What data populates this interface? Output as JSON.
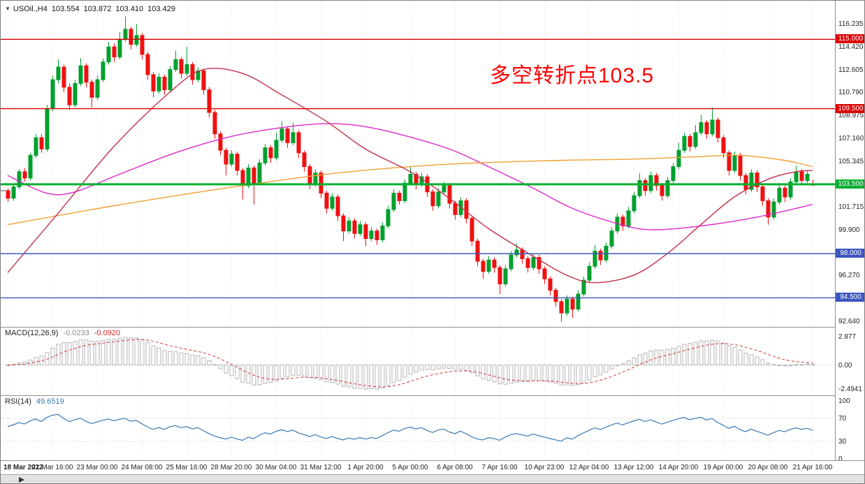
{
  "header": {
    "dropdown_icon": "▼",
    "symbol": "USOil.,H4",
    "open": "103.554",
    "high": "103.872",
    "low": "103.410",
    "close": "103.429"
  },
  "annotation": {
    "text": "多空转折点103.5",
    "color": "#FF0000"
  },
  "colors": {
    "up": "#00A02E",
    "down": "#EE1111",
    "ma_magenta": "#DD28C8",
    "ma_orange": "#F0A030",
    "ma_crimson": "#C2314B",
    "macd_hist": "#B4B4B4",
    "macd_signal": "#D23333",
    "rsi_line": "#3878B4",
    "grid": "#E7E7E7",
    "level_dotted": "#C8C8C8",
    "hline_red": "#DD0000",
    "hline_green": "#00B02E",
    "hline_blue": "#3C56C0"
  },
  "chart_data": {
    "type": "candlestick",
    "symbol": "USOil.",
    "timeframe": "H4",
    "grid": true,
    "ylim": [
      92.2,
      118.06
    ],
    "y_ticks": [
      "116.235",
      "114.420",
      "112.605",
      "110.790",
      "108.975",
      "107.160",
      "105.345",
      "101.715",
      "99.900",
      "96.270",
      "92.640"
    ],
    "x_labels": [
      "18 Mar 2022",
      "21 Mar 16:00",
      "23 Mar 00:00",
      "24 Mar 08:00",
      "25 Mar 16:00",
      "28 Mar 20:00",
      "30 Mar 04:00",
      "31 Mar 12:00",
      "1 Apr 20:00",
      "5 Apr 00:00",
      "6 Apr 08:00",
      "7 Apr 16:00",
      "10 Apr 23:00",
      "12 Apr 04:00",
      "13 Apr 12:00",
      "14 Apr 20:00",
      "19 Apr 00:00",
      "20 Apr 08:00",
      "21 Apr 16:00"
    ],
    "bars_per_label": 8,
    "open_dash_price": 103.0,
    "hlines": [
      {
        "price": 115.0,
        "label": "115.000",
        "color": "#DD0000",
        "width": 1.4
      },
      {
        "price": 109.5,
        "label": "109.500",
        "color": "#DD0000",
        "width": 1.4
      },
      {
        "price": 103.5,
        "label": "103.500",
        "color": "#00B02E",
        "width": 3
      },
      {
        "price": 98.0,
        "label": "98.000",
        "color": "#3C56C0",
        "width": 1.4
      },
      {
        "price": 94.5,
        "label": "94.500",
        "color": "#3C56C0",
        "width": 1.4
      }
    ],
    "moving_averages": [
      {
        "name": "ma-magenta",
        "color": "#DD28C8",
        "points": [
          [
            0,
            104.2
          ],
          [
            7,
            102.8
          ],
          [
            12,
            102.9
          ],
          [
            20,
            104.3
          ],
          [
            30,
            106.0
          ],
          [
            40,
            107.3
          ],
          [
            49,
            108.0
          ],
          [
            56,
            108.3
          ],
          [
            62,
            108.2
          ],
          [
            69,
            107.6
          ],
          [
            79,
            106.3
          ],
          [
            86,
            104.9
          ],
          [
            94,
            103.2
          ],
          [
            101,
            101.6
          ],
          [
            109,
            100.4
          ],
          [
            115,
            99.9
          ],
          [
            124,
            100.2
          ],
          [
            134,
            100.9
          ],
          [
            144,
            101.9
          ]
        ]
      },
      {
        "name": "ma-orange",
        "color": "#F0A030",
        "points": [
          [
            0,
            100.3
          ],
          [
            19,
            101.8
          ],
          [
            39,
            103.2
          ],
          [
            59,
            104.4
          ],
          [
            79,
            105.1
          ],
          [
            99,
            105.4
          ],
          [
            112,
            105.5
          ],
          [
            124,
            105.7
          ],
          [
            131,
            105.8
          ],
          [
            139,
            105.4
          ],
          [
            144,
            104.9
          ]
        ]
      },
      {
        "name": "ma-crimson",
        "color": "#C2314B",
        "points": [
          [
            0,
            96.5
          ],
          [
            9,
            101.2
          ],
          [
            19,
            106.5
          ],
          [
            29,
            110.8
          ],
          [
            35,
            112.6
          ],
          [
            42,
            112.3
          ],
          [
            49,
            110.6
          ],
          [
            57,
            108.5
          ],
          [
            64,
            106.3
          ],
          [
            72,
            104.5
          ],
          [
            79,
            102.4
          ],
          [
            86,
            100.0
          ],
          [
            94,
            97.8
          ],
          [
            100,
            96.3
          ],
          [
            105,
            95.7
          ],
          [
            112,
            96.3
          ],
          [
            118,
            98.0
          ],
          [
            124,
            100.3
          ],
          [
            130,
            102.5
          ],
          [
            136,
            103.9
          ],
          [
            141,
            104.5
          ],
          [
            144,
            104.6
          ]
        ]
      }
    ],
    "candles": [
      [
        103,
        103.2,
        102.1,
        102.4
      ],
      [
        102.4,
        103.5,
        102.2,
        103.3
      ],
      [
        103.3,
        104.7,
        103.1,
        104.5
      ],
      [
        104.5,
        104.8,
        103.7,
        104
      ],
      [
        104,
        106,
        103.8,
        105.8
      ],
      [
        105.8,
        107.5,
        105.6,
        107.2
      ],
      [
        107.2,
        107.5,
        106,
        106.3
      ],
      [
        106.3,
        109.8,
        106.1,
        109.5
      ],
      [
        109.5,
        112.1,
        109.3,
        111.8
      ],
      [
        111.8,
        113.4,
        111.5,
        112.8
      ],
      [
        112.8,
        113,
        110.8,
        111.2
      ],
      [
        111.2,
        111.5,
        109.4,
        109.8
      ],
      [
        109.8,
        111.8,
        109.6,
        111.5
      ],
      [
        111.5,
        113.5,
        111.3,
        112.9
      ],
      [
        112.9,
        113.1,
        111.2,
        111.6
      ],
      [
        111.6,
        111.8,
        109.6,
        110.4
      ],
      [
        110.4,
        112.1,
        110.2,
        111.8
      ],
      [
        111.8,
        113.5,
        111.6,
        113.2
      ],
      [
        113.2,
        114.8,
        113,
        114.4
      ],
      [
        114.4,
        114.7,
        113.2,
        113.6
      ],
      [
        113.6,
        115.6,
        113.4,
        115
      ],
      [
        115,
        116.8,
        114.8,
        115.8
      ],
      [
        115.8,
        116,
        114.2,
        114.6
      ],
      [
        114.6,
        116.2,
        114.4,
        115.3
      ],
      [
        115.3,
        115.5,
        113.4,
        113.8
      ],
      [
        113.8,
        114,
        111.8,
        112.2
      ],
      [
        112.2,
        112.4,
        110.4,
        110.9
      ],
      [
        110.9,
        112.3,
        110.7,
        112
      ],
      [
        112,
        112.2,
        110.6,
        111
      ],
      [
        111,
        112.9,
        110.8,
        112.6
      ],
      [
        112.6,
        114.1,
        112.4,
        113.4
      ],
      [
        113.4,
        113.6,
        111.9,
        112.3
      ],
      [
        112.3,
        114.4,
        112.1,
        113
      ],
      [
        113,
        113.2,
        111.4,
        111.8
      ],
      [
        111.8,
        112.8,
        111.6,
        112.5
      ],
      [
        112.5,
        112.7,
        110.6,
        111
      ],
      [
        111,
        111.2,
        108.8,
        109.2
      ],
      [
        109.2,
        109.4,
        107.1,
        107.5
      ],
      [
        107.5,
        107.7,
        105.8,
        106.2
      ],
      [
        106.2,
        106.4,
        104.2,
        105.1
      ],
      [
        105.1,
        106.2,
        104.9,
        105.9
      ],
      [
        105.9,
        106.1,
        104.2,
        104.6
      ],
      [
        104.6,
        104.8,
        102.3,
        103.4
      ],
      [
        103.4,
        105.1,
        103.2,
        104.8
      ],
      [
        104.8,
        105,
        101.9,
        103.6
      ],
      [
        103.6,
        105.5,
        103.4,
        105.2
      ],
      [
        105.2,
        106.7,
        105,
        106.4
      ],
      [
        106.4,
        106.6,
        105.2,
        105.6
      ],
      [
        105.6,
        107.6,
        105.4,
        107
      ],
      [
        107,
        108.5,
        106.8,
        107.9
      ],
      [
        107.9,
        108.1,
        106.4,
        106.8
      ],
      [
        106.8,
        108.4,
        106.6,
        107.6
      ],
      [
        107.6,
        107.8,
        105.6,
        106
      ],
      [
        106,
        106.2,
        104.5,
        104.9
      ],
      [
        104.9,
        105.1,
        103.1,
        103.5
      ],
      [
        103.5,
        104.7,
        103.3,
        104.4
      ],
      [
        104.4,
        104.6,
        102.4,
        102.8
      ],
      [
        102.8,
        103,
        101.2,
        101.6
      ],
      [
        101.6,
        102.8,
        101.4,
        102.5
      ],
      [
        102.5,
        102.7,
        100.6,
        101
      ],
      [
        101,
        101.2,
        99,
        99.8
      ],
      [
        99.8,
        100.9,
        99.6,
        100.6
      ],
      [
        100.6,
        100.8,
        99.2,
        99.6
      ],
      [
        99.6,
        100.6,
        99.4,
        100.3
      ],
      [
        100.3,
        100.5,
        98.6,
        99.2
      ],
      [
        99.2,
        100.1,
        99,
        99.8
      ],
      [
        99.8,
        100,
        98.7,
        99.1
      ],
      [
        99.1,
        100.5,
        98.9,
        100.2
      ],
      [
        100.2,
        101.8,
        100,
        101.5
      ],
      [
        101.5,
        103.1,
        101.3,
        102.8
      ],
      [
        102.8,
        103,
        101.9,
        102.2
      ],
      [
        102.2,
        103.9,
        102,
        103.6
      ],
      [
        103.6,
        104.9,
        103.4,
        104.3
      ],
      [
        104.3,
        104.5,
        103.1,
        103.5
      ],
      [
        103.5,
        104.4,
        103.3,
        104.1
      ],
      [
        104.1,
        104.3,
        102.5,
        102.9
      ],
      [
        102.9,
        103.1,
        101.4,
        101.8
      ],
      [
        101.8,
        103.2,
        101.6,
        102.9
      ],
      [
        102.9,
        103.7,
        102.7,
        103.4
      ],
      [
        103.4,
        103.6,
        101.6,
        102
      ],
      [
        102,
        102.2,
        100.7,
        101.1
      ],
      [
        101.1,
        102.5,
        100.9,
        102.2
      ],
      [
        102.2,
        102.4,
        100.4,
        100.8
      ],
      [
        100.8,
        101,
        98.6,
        99
      ],
      [
        99,
        99.2,
        97,
        97.4
      ],
      [
        97.4,
        97.6,
        96,
        96.6
      ],
      [
        96.6,
        97.8,
        96.4,
        97.5
      ],
      [
        97.5,
        97.7,
        96.5,
        96.9
      ],
      [
        96.9,
        97.1,
        94.8,
        95.6
      ],
      [
        95.6,
        97.1,
        95.4,
        96.8
      ],
      [
        96.8,
        98.2,
        96.6,
        97.9
      ],
      [
        97.9,
        98.8,
        97.7,
        98.3
      ],
      [
        98.3,
        98.5,
        97.2,
        97.6
      ],
      [
        97.6,
        97.8,
        96.5,
        96.9
      ],
      [
        96.9,
        98,
        96.7,
        97.7
      ],
      [
        97.7,
        97.9,
        96.4,
        96.8
      ],
      [
        96.8,
        97,
        95.6,
        96
      ],
      [
        96,
        96.2,
        94.7,
        95.1
      ],
      [
        95.1,
        95.3,
        93.8,
        94.2
      ],
      [
        94.2,
        94.4,
        92.6,
        93.3
      ],
      [
        93.3,
        94.7,
        93.1,
        94.4
      ],
      [
        94.4,
        94.6,
        92.9,
        93.6
      ],
      [
        93.6,
        95.1,
        93.4,
        94.8
      ],
      [
        94.8,
        96.2,
        94.6,
        95.9
      ],
      [
        95.9,
        97.3,
        95.7,
        97
      ],
      [
        97,
        98.7,
        96.8,
        98.2
      ],
      [
        98.2,
        98.4,
        97.1,
        97.5
      ],
      [
        97.5,
        98.9,
        97.3,
        98.6
      ],
      [
        98.6,
        100.1,
        98.4,
        99.8
      ],
      [
        99.8,
        101.2,
        99.6,
        100.9
      ],
      [
        100.9,
        101.1,
        99.8,
        100.2
      ],
      [
        100.2,
        101.7,
        100,
        101.4
      ],
      [
        101.4,
        102.9,
        101.2,
        102.6
      ],
      [
        102.6,
        104.4,
        102.4,
        103.8
      ],
      [
        103.8,
        104,
        102.6,
        103
      ],
      [
        103,
        104.5,
        102.8,
        104.2
      ],
      [
        104.2,
        104.4,
        103,
        103.4
      ],
      [
        103.4,
        103.6,
        102.2,
        102.6
      ],
      [
        102.6,
        104.1,
        102.4,
        103.8
      ],
      [
        103.8,
        105.2,
        103.6,
        104.9
      ],
      [
        104.9,
        106.8,
        104.7,
        106.2
      ],
      [
        106.2,
        107.6,
        106,
        107.3
      ],
      [
        107.3,
        107.5,
        106.1,
        106.5
      ],
      [
        106.5,
        108.2,
        106.3,
        107.6
      ],
      [
        107.6,
        109,
        107.4,
        108.4
      ],
      [
        108.4,
        108.6,
        107.1,
        107.5
      ],
      [
        107.5,
        109.6,
        107.3,
        108.6
      ],
      [
        108.6,
        108.8,
        106.8,
        107.2
      ],
      [
        107.2,
        107.4,
        105.6,
        106
      ],
      [
        106,
        106.2,
        104.2,
        104.6
      ],
      [
        104.6,
        106.1,
        104.4,
        105.8
      ],
      [
        105.8,
        106,
        103.8,
        104.2
      ],
      [
        104.2,
        104.4,
        102.7,
        103.1
      ],
      [
        103.1,
        104.7,
        102.9,
        104.4
      ],
      [
        104.4,
        104.6,
        102.9,
        103.3
      ],
      [
        103.3,
        103.5,
        101.8,
        102.2
      ],
      [
        102.2,
        102.4,
        100.3,
        100.9
      ],
      [
        100.9,
        102.4,
        100.7,
        102.1
      ],
      [
        102.1,
        103.5,
        101.9,
        103.2
      ],
      [
        103.2,
        103.4,
        102.1,
        102.5
      ],
      [
        102.5,
        104,
        102.3,
        103.7
      ],
      [
        103.7,
        105,
        103.5,
        104.5
      ],
      [
        104.5,
        104.7,
        103.4,
        103.8
      ],
      [
        103.8,
        104.6,
        103.6,
        104.3
      ],
      [
        103.55,
        103.87,
        103.41,
        103.43
      ]
    ],
    "macd": {
      "name": "MACD(12,26,9)",
      "value_main": "-0.0233",
      "value_signal": "-0.0920",
      "axis_top": "2.877",
      "axis_zero": "0.00",
      "axis_bottom": "-2.4941",
      "fast": 12,
      "slow": 26,
      "signal": 9
    },
    "rsi": {
      "name": "RSI(14)",
      "value": "49.6519",
      "axis": [
        "100",
        "70",
        "30",
        "0"
      ],
      "levels": [
        70,
        30
      ],
      "period": 14
    }
  }
}
